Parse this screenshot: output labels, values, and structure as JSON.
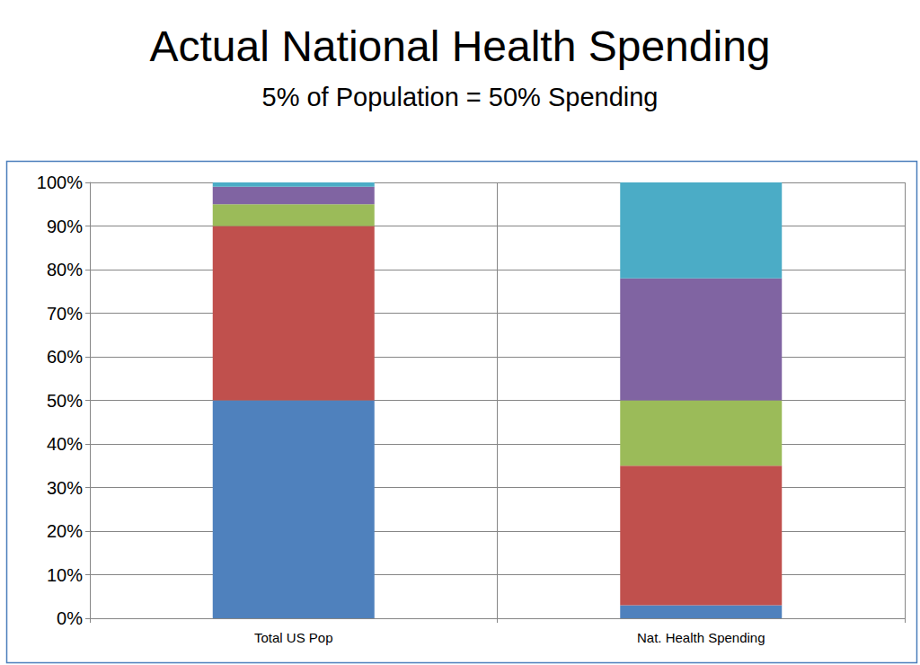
{
  "chart_data": {
    "type": "bar",
    "title": "Actual National Health Spending",
    "subtitle": "5% of Population = 50% Spending",
    "categories": [
      "Total US Pop",
      "Nat. Health Spending"
    ],
    "series": [
      {
        "color": "#4F81BD",
        "values": [
          50,
          3
        ]
      },
      {
        "color": "#C0504D",
        "values": [
          40,
          32
        ]
      },
      {
        "color": "#9BBB59",
        "values": [
          5,
          15
        ]
      },
      {
        "color": "#8064A2",
        "values": [
          4,
          28
        ]
      },
      {
        "color": "#4BACC6",
        "values": [
          1,
          22
        ]
      }
    ],
    "stacked": true,
    "ylim": [
      0,
      100
    ],
    "yticks": [
      {
        "value": 0,
        "label": "0%"
      },
      {
        "value": 10,
        "label": "10%"
      },
      {
        "value": 20,
        "label": "20%"
      },
      {
        "value": 30,
        "label": "30%"
      },
      {
        "value": 40,
        "label": "40%"
      },
      {
        "value": 50,
        "label": "50%"
      },
      {
        "value": 60,
        "label": "60%"
      },
      {
        "value": 70,
        "label": "70%"
      },
      {
        "value": 80,
        "label": "80%"
      },
      {
        "value": 90,
        "label": "90%"
      },
      {
        "value": 100,
        "label": "100%"
      }
    ],
    "grid": true
  }
}
